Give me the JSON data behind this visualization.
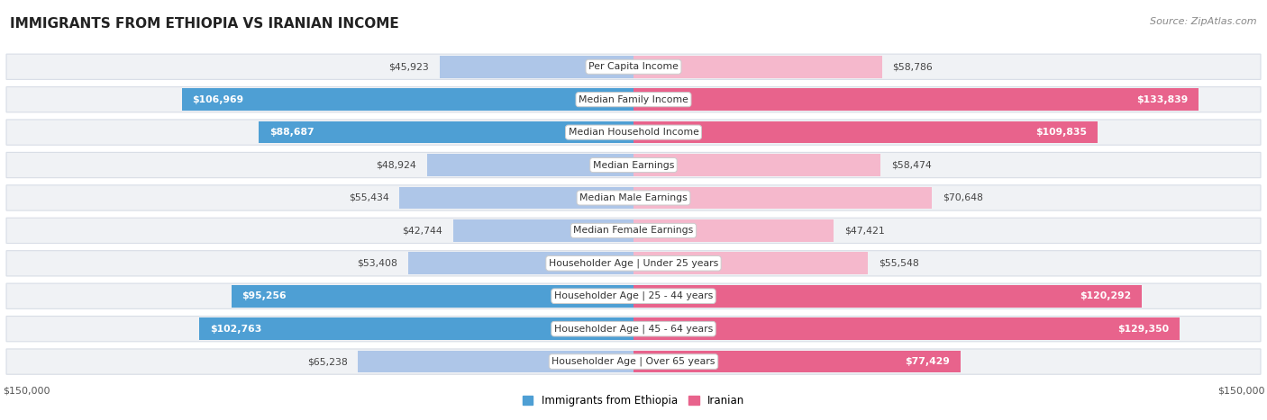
{
  "title": "IMMIGRANTS FROM ETHIOPIA VS IRANIAN INCOME",
  "source": "Source: ZipAtlas.com",
  "categories": [
    "Per Capita Income",
    "Median Family Income",
    "Median Household Income",
    "Median Earnings",
    "Median Male Earnings",
    "Median Female Earnings",
    "Householder Age | Under 25 years",
    "Householder Age | 25 - 44 years",
    "Householder Age | 45 - 64 years",
    "Householder Age | Over 65 years"
  ],
  "ethiopia_values": [
    45923,
    106969,
    88687,
    48924,
    55434,
    42744,
    53408,
    95256,
    102763,
    65238
  ],
  "iranian_values": [
    58786,
    133839,
    109835,
    58474,
    70648,
    47421,
    55548,
    120292,
    129350,
    77429
  ],
  "ethiopia_labels": [
    "$45,923",
    "$106,969",
    "$88,687",
    "$48,924",
    "$55,434",
    "$42,744",
    "$53,408",
    "$95,256",
    "$102,763",
    "$65,238"
  ],
  "iranian_labels": [
    "$58,786",
    "$133,839",
    "$109,835",
    "$58,474",
    "$70,648",
    "$47,421",
    "$55,548",
    "$120,292",
    "$129,350",
    "$77,429"
  ],
  "ethiopia_color_light": "#aec6e8",
  "ethiopia_color_dark": "#4e9fd4",
  "iranian_color_light": "#f5b8cc",
  "iranian_color_dark": "#e8638c",
  "max_value": 150000,
  "background_color": "#ffffff",
  "label_inside_threshold": 75000,
  "legend_ethiopia": "Immigrants from Ethiopia",
  "legend_iranian": "Iranian",
  "row_facecolor": "#f0f2f5",
  "row_edgecolor": "#d8dde6"
}
